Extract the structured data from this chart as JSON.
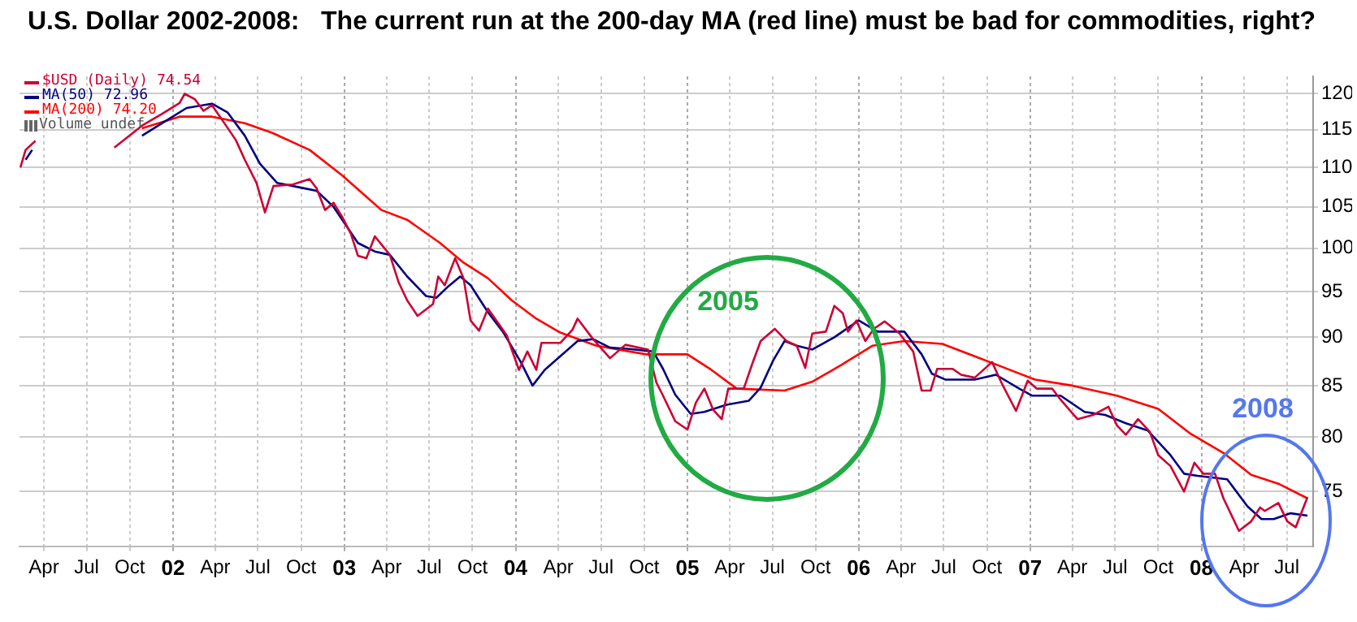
{
  "chart_data": {
    "type": "line",
    "title": "U.S. Dollar 2002-2008:   The current run at the 200-day MA (red line) must be bad for commodities, right?",
    "log": "y",
    "grid": true,
    "legend": "top left",
    "marker": "none",
    "line_style": "solid",
    "xlim": [
      "2001-02-08",
      "2008-08-26"
    ],
    "ylim": [
      70.3,
      122.5
    ],
    "yticks": [
      75,
      80,
      85,
      90,
      95,
      100,
      105,
      110,
      115,
      120
    ],
    "xticks": [
      {
        "value": "2001-04-01",
        "label": "Apr"
      },
      {
        "value": "2001-07-01",
        "label": "Jul"
      },
      {
        "value": "2001-10-01",
        "label": "Oct"
      },
      {
        "value": "2002-01-01",
        "label": "02"
      },
      {
        "value": "2002-04-01",
        "label": "Apr"
      },
      {
        "value": "2002-07-01",
        "label": "Jul"
      },
      {
        "value": "2002-10-01",
        "label": "Oct"
      },
      {
        "value": "2003-01-01",
        "label": "03"
      },
      {
        "value": "2003-04-01",
        "label": "Apr"
      },
      {
        "value": "2003-07-01",
        "label": "Jul"
      },
      {
        "value": "2003-10-01",
        "label": "Oct"
      },
      {
        "value": "2004-01-01",
        "label": "04"
      },
      {
        "value": "2004-04-01",
        "label": "Apr"
      },
      {
        "value": "2004-07-01",
        "label": "Jul"
      },
      {
        "value": "2004-10-01",
        "label": "Oct"
      },
      {
        "value": "2005-01-01",
        "label": "05"
      },
      {
        "value": "2005-04-01",
        "label": "Apr"
      },
      {
        "value": "2005-07-01",
        "label": "Jul"
      },
      {
        "value": "2005-10-01",
        "label": "Oct"
      },
      {
        "value": "2006-01-01",
        "label": "06"
      },
      {
        "value": "2006-04-01",
        "label": "Apr"
      },
      {
        "value": "2006-07-01",
        "label": "Jul"
      },
      {
        "value": "2006-10-01",
        "label": "Oct"
      },
      {
        "value": "2007-01-01",
        "label": "07"
      },
      {
        "value": "2007-04-01",
        "label": "Apr"
      },
      {
        "value": "2007-07-01",
        "label": "Jul"
      },
      {
        "value": "2007-10-01",
        "label": "Oct"
      },
      {
        "value": "2008-01-01",
        "label": "08"
      },
      {
        "value": "2008-04-01",
        "label": "Apr"
      },
      {
        "value": "2008-07-01",
        "label": "Jul"
      }
    ],
    "series": [
      {
        "name": "$USD (Daily) 74.54",
        "color": "#cc0033",
        "x": [
          "2001-02-10",
          "2001-02-21",
          "2001-03-14",
          "2001-05-15",
          "2001-08-29",
          "2001-10-30",
          "2001-12-09",
          "2002-01-15",
          "2002-01-26",
          "2002-02-17",
          "2002-03-07",
          "2002-03-25",
          "2002-04-27",
          "2002-05-15",
          "2002-06-03",
          "2002-06-28",
          "2002-07-16",
          "2002-08-03",
          "2002-09-13",
          "2002-10-19",
          "2002-11-03",
          "2002-11-21",
          "2002-12-09",
          "2002-12-27",
          "2003-01-15",
          "2003-01-30",
          "2003-02-17",
          "2003-03-07",
          "2003-04-08",
          "2003-04-27",
          "2003-05-15",
          "2003-06-06",
          "2003-07-09",
          "2003-07-20",
          "2003-08-03",
          "2003-08-25",
          "2003-09-12",
          "2003-09-27",
          "2003-10-15",
          "2003-11-03",
          "2003-11-21",
          "2003-12-13",
          "2004-01-08",
          "2004-01-26",
          "2004-02-14",
          "2004-02-25",
          "2004-04-05",
          "2004-05-01",
          "2004-05-12",
          "2004-06-14",
          "2004-07-20",
          "2004-08-22",
          "2004-10-09",
          "2004-10-27",
          "2004-11-10",
          "2004-12-06",
          "2005-01-01",
          "2005-01-19",
          "2005-02-06",
          "2005-02-25",
          "2005-03-15",
          "2005-03-29",
          "2005-05-01",
          "2005-05-19",
          "2005-06-06",
          "2005-07-06",
          "2005-07-31",
          "2005-08-22",
          "2005-09-09",
          "2005-09-24",
          "2005-10-23",
          "2005-11-10",
          "2005-11-28",
          "2005-12-09",
          "2005-12-27",
          "2006-01-15",
          "2006-02-02",
          "2006-02-25",
          "2006-03-29",
          "2006-04-27",
          "2006-05-15",
          "2006-06-03",
          "2006-06-17",
          "2006-07-20",
          "2006-08-07",
          "2006-09-05",
          "2006-10-12",
          "2006-11-03",
          "2006-12-02",
          "2006-12-27",
          "2007-01-15",
          "2007-02-17",
          "2007-03-07",
          "2007-04-12",
          "2007-05-15",
          "2007-06-17",
          "2007-07-05",
          "2007-07-24",
          "2007-08-19",
          "2007-09-13",
          "2007-10-01",
          "2007-10-27",
          "2007-11-25",
          "2007-12-17",
          "2008-01-05",
          "2008-01-30",
          "2008-02-17",
          "2008-03-21",
          "2008-04-16",
          "2008-05-05",
          "2008-05-15",
          "2008-06-13",
          "2008-07-02",
          "2008-07-20",
          "2008-08-14"
        ],
        "values": [
          110.0,
          112.3,
          113.5,
          null,
          112.6,
          115.7,
          117.2,
          118.7,
          120.0,
          119.2,
          117.6,
          118.4,
          115.3,
          113.6,
          111.0,
          108.0,
          104.3,
          107.6,
          107.8,
          108.5,
          107.3,
          104.6,
          105.5,
          103.8,
          101.7,
          99.1,
          98.8,
          101.4,
          99.2,
          96.0,
          94.0,
          92.3,
          93.6,
          96.7,
          95.7,
          98.8,
          96.5,
          91.8,
          90.7,
          93.1,
          91.8,
          90.2,
          86.6,
          88.5,
          86.6,
          89.4,
          89.4,
          90.8,
          92.0,
          89.8,
          87.8,
          89.2,
          88.7,
          85.3,
          84.0,
          81.5,
          80.7,
          83.3,
          84.7,
          82.6,
          81.7,
          84.7,
          84.7,
          87.2,
          89.6,
          90.9,
          89.6,
          89.1,
          86.8,
          90.4,
          90.6,
          93.4,
          92.6,
          90.6,
          91.8,
          89.6,
          90.9,
          91.7,
          90.4,
          88.5,
          84.5,
          84.5,
          86.7,
          86.7,
          86.1,
          85.8,
          87.4,
          85.1,
          82.5,
          85.5,
          84.7,
          84.7,
          83.6,
          81.7,
          82.1,
          82.9,
          81.1,
          80.2,
          81.7,
          80.5,
          78.3,
          77.3,
          75.0,
          77.6,
          76.6,
          76.6,
          74.4,
          71.6,
          72.4,
          73.6,
          73.3,
          74.0,
          72.4,
          71.9,
          74.5
        ]
      },
      {
        "name": "MA(50) 72.96",
        "color": "#000080",
        "x": [
          "2001-02-21",
          "2001-03-07",
          "2001-05-15",
          "2001-10-27",
          "2001-12-09",
          "2002-01-30",
          "2002-03-25",
          "2002-04-27",
          "2002-06-03",
          "2002-07-05",
          "2002-08-11",
          "2002-10-01",
          "2002-11-03",
          "2002-12-09",
          "2003-01-30",
          "2003-03-07",
          "2003-04-08",
          "2003-05-15",
          "2003-06-24",
          "2003-07-16",
          "2003-08-11",
          "2003-09-05",
          "2003-09-27",
          "2003-11-03",
          "2003-12-06",
          "2004-01-12",
          "2004-02-06",
          "2004-03-03",
          "2004-04-05",
          "2004-05-12",
          "2004-06-14",
          "2004-07-20",
          "2004-08-22",
          "2004-10-20",
          "2004-11-10",
          "2004-12-06",
          "2005-01-08",
          "2005-02-06",
          "2005-03-25",
          "2005-05-12",
          "2005-06-06",
          "2005-07-02",
          "2005-07-27",
          "2005-08-22",
          "2005-09-24",
          "2005-11-10",
          "2006-01-01",
          "2006-02-10",
          "2006-04-08",
          "2006-05-15",
          "2006-06-06",
          "2006-07-05",
          "2006-09-05",
          "2006-10-20",
          "2006-12-09",
          "2007-01-05",
          "2007-03-07",
          "2007-04-27",
          "2007-06-10",
          "2007-07-24",
          "2007-09-09",
          "2007-10-27",
          "2007-11-25",
          "2007-12-24",
          "2008-02-25",
          "2008-04-08",
          "2008-05-08",
          "2008-06-03",
          "2008-07-09",
          "2008-08-14"
        ],
        "values": [
          111.0,
          112.3,
          null,
          114.2,
          115.9,
          118.0,
          118.6,
          117.4,
          114.2,
          110.5,
          108.0,
          107.4,
          107.0,
          105.0,
          100.6,
          99.6,
          99.2,
          96.7,
          94.5,
          94.3,
          95.6,
          96.7,
          95.7,
          92.7,
          90.5,
          87.4,
          85.0,
          86.6,
          88.0,
          89.6,
          89.8,
          88.9,
          88.8,
          88.5,
          86.7,
          84.1,
          82.2,
          82.4,
          83.1,
          83.5,
          84.8,
          87.5,
          89.6,
          89.1,
          88.7,
          90.0,
          91.8,
          90.6,
          90.6,
          88.2,
          86.2,
          85.6,
          85.6,
          86.1,
          84.7,
          84.0,
          84.0,
          82.4,
          82.1,
          81.3,
          80.6,
          78.3,
          76.6,
          76.4,
          76.1,
          73.7,
          72.6,
          72.6,
          73.1,
          72.9
        ]
      },
      {
        "name": "MA(200) 74.20",
        "color": "#ff0000",
        "x": [
          "2001-10-27",
          "2002-01-15",
          "2002-03-25",
          "2002-06-03",
          "2002-07-31",
          "2002-10-19",
          "2002-12-27",
          "2003-03-21",
          "2003-05-15",
          "2003-07-24",
          "2003-09-12",
          "2003-11-03",
          "2003-12-24",
          "2004-02-14",
          "2004-04-05",
          "2004-06-21",
          "2004-10-05",
          "2005-01-01",
          "2005-02-21",
          "2005-04-16",
          "2005-07-27",
          "2005-09-24",
          "2005-11-25",
          "2006-01-30",
          "2006-04-08",
          "2006-06-28",
          "2006-09-05",
          "2006-11-03",
          "2007-01-12",
          "2007-04-01",
          "2007-07-05",
          "2007-10-01",
          "2007-12-09",
          "2008-02-17",
          "2008-04-16",
          "2008-06-13",
          "2008-08-14"
        ],
        "values": [
          115.2,
          116.8,
          116.8,
          115.9,
          114.6,
          112.3,
          109.0,
          104.6,
          103.4,
          100.6,
          98.3,
          96.5,
          94.0,
          92.0,
          90.5,
          89.1,
          88.2,
          88.2,
          86.6,
          84.7,
          84.5,
          85.4,
          87.1,
          89.1,
          89.6,
          89.3,
          88.0,
          86.9,
          85.6,
          85.0,
          84.0,
          82.7,
          80.3,
          78.5,
          76.5,
          75.7,
          74.4
        ]
      }
    ],
    "annotations": [
      "Volume undef",
      "2005",
      "2008"
    ]
  }
}
